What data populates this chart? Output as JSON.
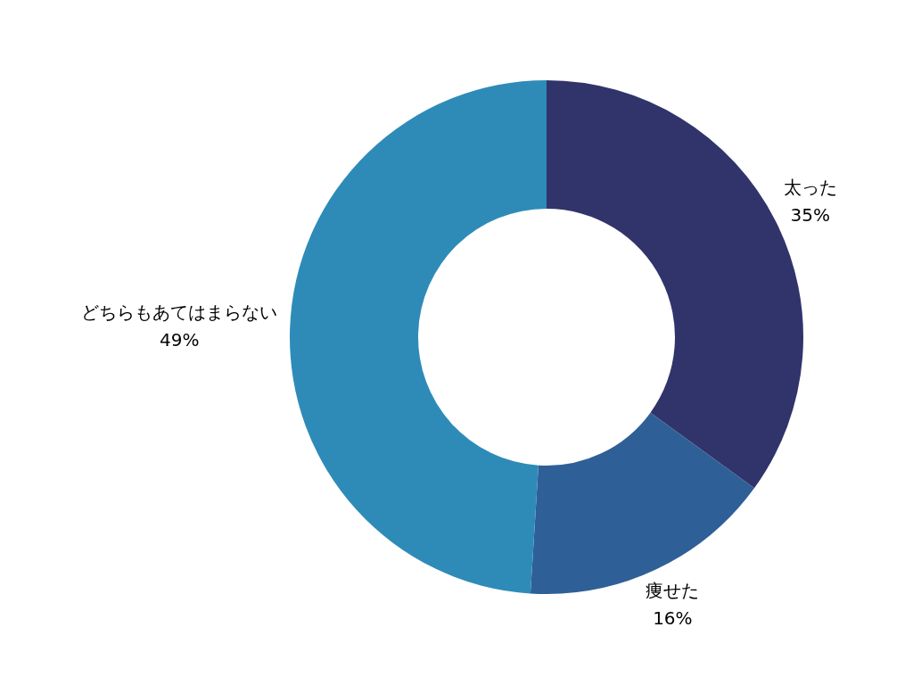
{
  "chart_data": {
    "type": "donut",
    "categories": [
      "太った",
      "痩せた",
      "どちらもあてはまらない"
    ],
    "values": [
      35,
      16,
      49
    ],
    "colors": [
      "#31346b",
      "#2f5f97",
      "#2e8bb8"
    ],
    "value_labels": [
      "35%",
      "16%",
      "49%"
    ]
  }
}
